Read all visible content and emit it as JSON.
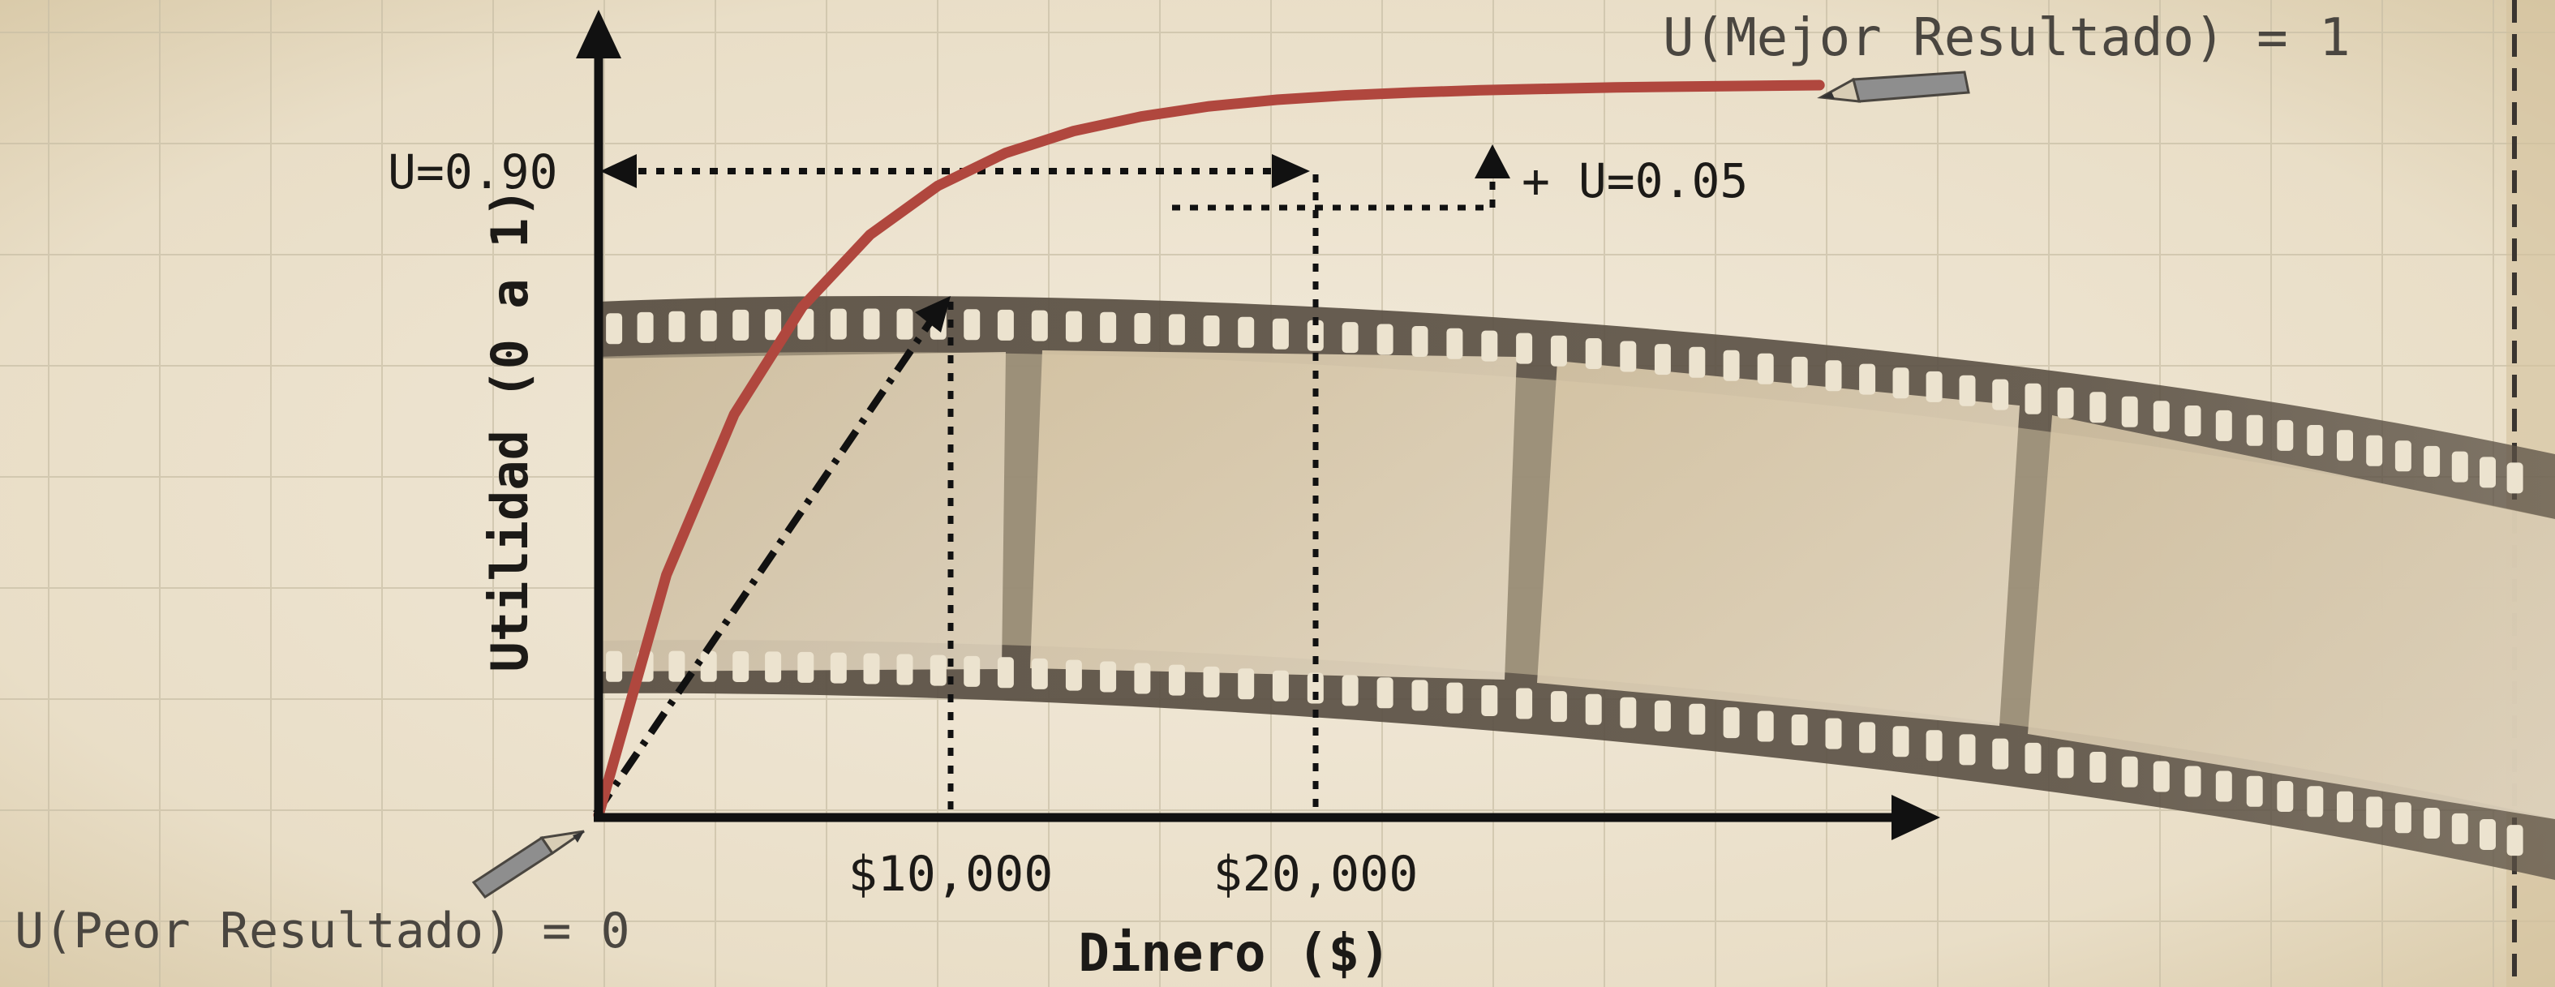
{
  "labels": {
    "best_outcome": "U(Mejor Resultado) = 1",
    "worst_outcome": "U(Peor Resultado) = 0",
    "u_high": "U=0.90",
    "u_increment": "+ U=0.05",
    "x_tick_1": "$10,000",
    "x_tick_2": "$20,000",
    "x_axis": "Dinero ($)",
    "y_axis": "Utilidad (0 a 1)"
  },
  "colors": {
    "background": "#ece3cf",
    "grid": "#c9bfa6",
    "curve": "#b0473e",
    "axis": "#111111",
    "film": "#5b5145",
    "film_frame": "#d8cab1",
    "pencil": "#8e8e8e"
  },
  "chart_data": {
    "type": "line",
    "x_ticks": [
      10000,
      20000
    ],
    "y_marks": [
      0.9
    ],
    "series": [
      {
        "x": [
          0,
          2000,
          4000,
          6000,
          8000,
          10000,
          12000,
          14000,
          16000,
          18000,
          20000,
          22000,
          24000,
          26000,
          28000,
          30000,
          32000,
          34000,
          36000
        ],
        "y": [
          0,
          0.329,
          0.549,
          0.696,
          0.795,
          0.862,
          0.907,
          0.937,
          0.957,
          0.971,
          0.98,
          0.986,
          0.99,
          0.993,
          0.995,
          0.997,
          0.998,
          0.999,
          1.0
        ]
      }
    ],
    "xlim": [
      0,
      37000
    ],
    "ylim": [
      0,
      1.05
    ]
  }
}
